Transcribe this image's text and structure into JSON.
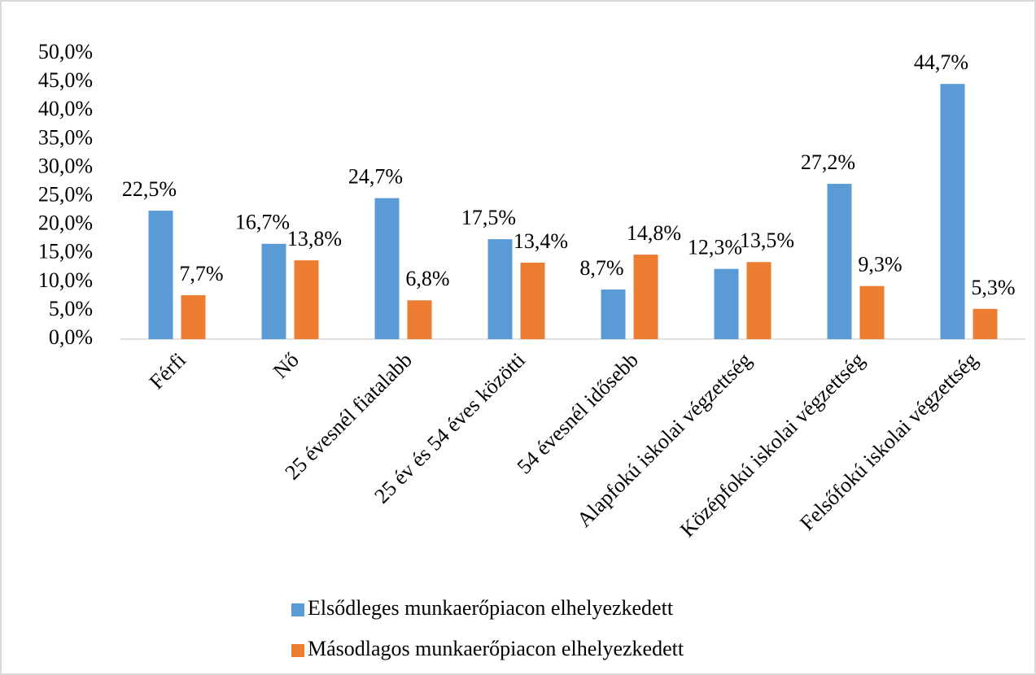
{
  "chart_data": {
    "type": "bar",
    "categories": [
      "Férfi",
      "Nő",
      "25 évesnél fiatalabb",
      "25 év és 54 éves közötti",
      "54 évesnél idősebb",
      "Alapfokú iskolai végzettség",
      "Középfokú iskolai végzettség",
      "Felsőfokú iskolai végzettség"
    ],
    "series": [
      {
        "name": "Elsődleges munkaerőpiacon elhelyezkedett",
        "color": "#5b9bd5",
        "values": [
          22.5,
          16.7,
          24.7,
          17.5,
          8.7,
          12.3,
          27.2,
          44.7
        ],
        "value_labels": [
          "22,5%",
          "16,7%",
          "24,7%",
          "17,5%",
          "8,7%",
          "12,3%",
          "27,2%",
          "44,7%"
        ]
      },
      {
        "name": "Másodlagos munkaerőpiacon elhelyezkedett",
        "color": "#ed7d31",
        "values": [
          7.7,
          13.8,
          6.8,
          13.4,
          14.8,
          13.5,
          9.3,
          5.3
        ],
        "value_labels": [
          "7,7%",
          "13,8%",
          "6,8%",
          "13,4%",
          "14,8%",
          "13,5%",
          "9,3%",
          "5,3%"
        ]
      }
    ],
    "ylim": [
      0,
      50
    ],
    "yticks": [
      {
        "value": 0,
        "label": "0,0%"
      },
      {
        "value": 5,
        "label": "5,0%"
      },
      {
        "value": 10,
        "label": "10,0%"
      },
      {
        "value": 15,
        "label": "15,0%"
      },
      {
        "value": 20,
        "label": "20,0%"
      },
      {
        "value": 25,
        "label": "25,0%"
      },
      {
        "value": 30,
        "label": "30,0%"
      },
      {
        "value": 35,
        "label": "35,0%"
      },
      {
        "value": 40,
        "label": "40,0%"
      },
      {
        "value": 45,
        "label": "45,0%"
      },
      {
        "value": 50,
        "label": "50,0%"
      }
    ],
    "legend": "bottom"
  }
}
